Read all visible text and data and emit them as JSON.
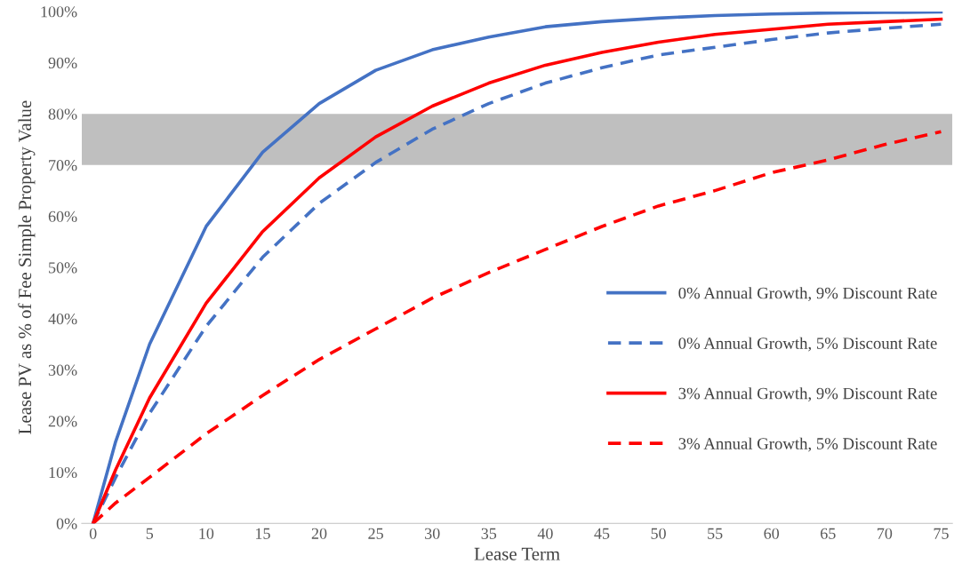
{
  "chart_data": {
    "type": "line",
    "xlabel": "Lease Term",
    "ylabel": "Lease PV as % of Fee Simple Property Value",
    "x": [
      0,
      2,
      5,
      10,
      15,
      20,
      25,
      30,
      35,
      40,
      45,
      50,
      55,
      60,
      65,
      70,
      75
    ],
    "series": [
      {
        "name": "0% Annual Growth, 9% Discount Rate",
        "color": "#4472c4",
        "line_style": "solid",
        "values": [
          0,
          16,
          35,
          58,
          72.5,
          82,
          88.5,
          92.5,
          95,
          97,
          98,
          98.7,
          99.2,
          99.5,
          99.7,
          99.8,
          99.9
        ]
      },
      {
        "name": "0% Annual Growth, 5% Discount Rate",
        "color": "#4472c4",
        "line_style": "dashed",
        "values": [
          0,
          9,
          21.5,
          38.5,
          52,
          62.5,
          70.5,
          77,
          82,
          86,
          89,
          91.5,
          93,
          94.5,
          95.8,
          96.7,
          97.5
        ]
      },
      {
        "name": "3% Annual Growth, 9% Discount Rate",
        "color": "#ff0000",
        "line_style": "solid",
        "values": [
          0,
          10.5,
          24.5,
          43,
          57,
          67.5,
          75.5,
          81.5,
          86,
          89.5,
          92,
          94,
          95.5,
          96.5,
          97.5,
          98,
          98.5
        ]
      },
      {
        "name": "3% Annual Growth, 5% Discount Rate",
        "color": "#ff0000",
        "line_style": "dashed",
        "values": [
          0,
          4,
          9,
          17.5,
          25,
          32,
          38,
          44,
          49,
          53.5,
          58,
          62,
          65,
          68.5,
          71,
          74,
          76.5
        ]
      }
    ],
    "xlim": [
      -1,
      76
    ],
    "xticks": [
      0,
      5,
      10,
      15,
      20,
      25,
      30,
      35,
      40,
      45,
      50,
      55,
      60,
      65,
      70,
      75
    ],
    "ylim": [
      0,
      100
    ],
    "yticks": [
      {
        "value": 0,
        "label": "0%"
      },
      {
        "value": 10,
        "label": "10%"
      },
      {
        "value": 20,
        "label": "20%"
      },
      {
        "value": 30,
        "label": "30%"
      },
      {
        "value": 40,
        "label": "40%"
      },
      {
        "value": 50,
        "label": "50%"
      },
      {
        "value": 60,
        "label": "60%"
      },
      {
        "value": 70,
        "label": "70%"
      },
      {
        "value": 80,
        "label": "80%"
      },
      {
        "value": 90,
        "label": "90%"
      },
      {
        "value": 100,
        "label": "100%"
      }
    ],
    "bands": [
      {
        "axis": "y",
        "from": 70,
        "to": 80,
        "color": "#bfbfbf"
      }
    ],
    "legend": "right",
    "grid": false
  }
}
